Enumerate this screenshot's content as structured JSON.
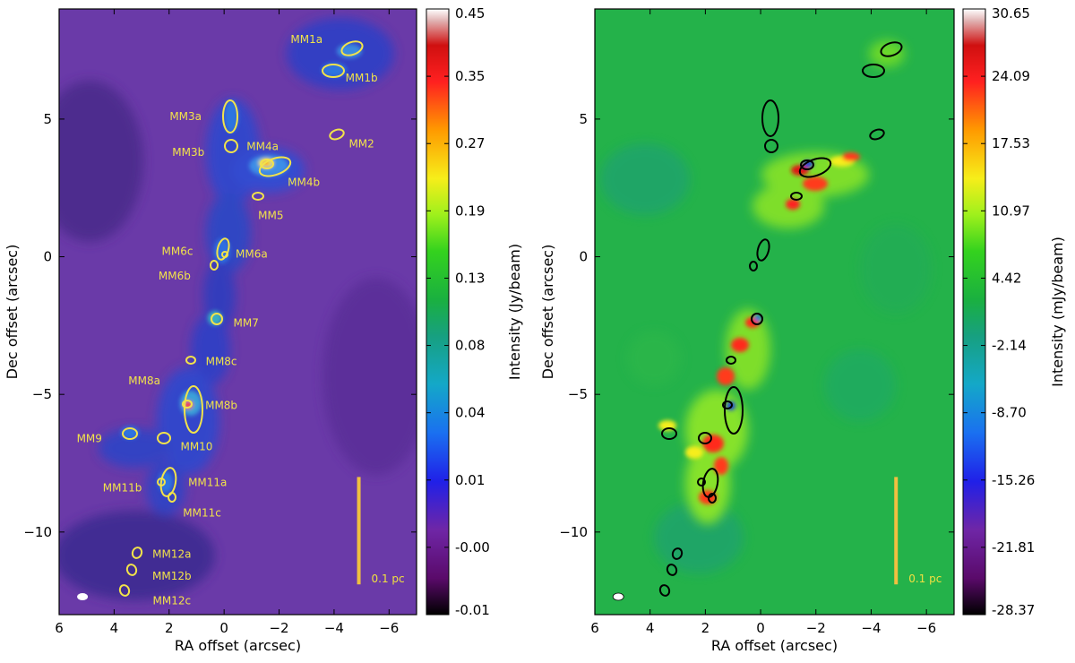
{
  "chart_data": [
    {
      "type": "heatmap",
      "xlabel": "RA offset (arcsec)",
      "ylabel": "Dec offset (arcsec)",
      "xlim": [
        6,
        -7
      ],
      "ylim": [
        -13,
        9
      ],
      "xticks": [
        6,
        4,
        2,
        0,
        -2,
        -4,
        -6
      ],
      "xtick_labels": [
        "6",
        "4",
        "2",
        "0",
        "−2",
        "−4",
        "−6"
      ],
      "yticks": [
        5,
        0,
        -5,
        -10
      ],
      "ytick_labels": [
        "5",
        "0",
        "−5",
        "−10"
      ],
      "colorbar": {
        "label": "Intensity (Jy/beam)",
        "colormap": "spectral",
        "ticks": [
          "0.45",
          "0.35",
          "0.27",
          "0.19",
          "0.13",
          "0.08",
          "0.04",
          "0.01",
          "-0.00",
          "-0.01"
        ]
      },
      "ellipse_color": "#f2e34a",
      "label_color": "#f2e34a",
      "scalebar": {
        "label": "0.1 pc",
        "x": -4.9,
        "y_top": -8.0,
        "y_bottom": -11.9
      },
      "beam": {
        "x": 5.15,
        "y": -12.35
      },
      "cores": [
        {
          "name": "MM1a",
          "x": -4.5,
          "y": 7.5,
          "lx": -3.0,
          "ly": 7.9
        },
        {
          "name": "MM1b",
          "x": -3.9,
          "y": 6.7,
          "lx": -5.0,
          "ly": 6.5
        },
        {
          "name": "MM2",
          "x": -3.9,
          "y": 4.4,
          "lx": -5.0,
          "ly": 4.1
        },
        {
          "name": "MM3a",
          "x": -0.1,
          "y": 5.1,
          "lx": 1.4,
          "ly": 5.1
        },
        {
          "name": "MM3b",
          "x": -0.1,
          "y": 4.0,
          "lx": 1.3,
          "ly": 3.8
        },
        {
          "name": "MM4a",
          "x": -1.45,
          "y": 3.35,
          "lx": -1.4,
          "ly": 4.0
        },
        {
          "name": "MM4b",
          "x": -1.8,
          "y": 3.2,
          "lx": -2.9,
          "ly": 2.7
        },
        {
          "name": "MM5",
          "x": -1.1,
          "y": 2.2,
          "lx": -1.7,
          "ly": 1.5
        },
        {
          "name": "MM6a",
          "x": 0.1,
          "y": 0.3,
          "lx": -1.0,
          "ly": 0.1
        },
        {
          "name": "MM6b",
          "x": 0.4,
          "y": -0.4,
          "lx": 1.8,
          "ly": -0.7
        },
        {
          "name": "MM6c",
          "x": 0.1,
          "y": 0.0,
          "lx": 1.7,
          "ly": 0.2
        },
        {
          "name": "MM7",
          "x": 0.35,
          "y": -2.3,
          "lx": -0.8,
          "ly": -2.4
        },
        {
          "name": "MM8a",
          "x": 1.4,
          "y": -4.5,
          "lx": 2.9,
          "ly": -4.5
        },
        {
          "name": "MM8b",
          "x": 1.2,
          "y": -4.7,
          "lx": 0.1,
          "ly": -5.4
        },
        {
          "name": "MM8c",
          "x": 1.3,
          "y": -3.8,
          "lx": 0.1,
          "ly": -3.8
        },
        {
          "name": "MM9",
          "x": 3.6,
          "y": -6.4,
          "lx": 4.9,
          "ly": -6.6
        },
        {
          "name": "MM10",
          "x": 2.3,
          "y": -6.6,
          "lx": 1.0,
          "ly": -6.9
        },
        {
          "name": "MM11a",
          "x": 2.0,
          "y": -8.2,
          "lx": 0.6,
          "ly": -8.2
        },
        {
          "name": "MM11b",
          "x": 2.35,
          "y": -8.3,
          "lx": 3.7,
          "ly": -8.4
        },
        {
          "name": "MM11c",
          "x": 1.9,
          "y": -8.8,
          "lx": 0.8,
          "ly": -9.3
        },
        {
          "name": "MM12a",
          "x": 3.2,
          "y": -10.8,
          "lx": 1.9,
          "ly": -10.8
        },
        {
          "name": "MM12b",
          "x": 3.35,
          "y": -11.4,
          "lx": 1.9,
          "ly": -11.6
        },
        {
          "name": "MM12c",
          "x": 3.55,
          "y": -12.2,
          "lx": 1.9,
          "ly": -12.5
        }
      ]
    },
    {
      "type": "heatmap",
      "xlabel": "RA offset (arcsec)",
      "ylabel": "Dec  offset (arcsec)",
      "xlim": [
        6,
        -7
      ],
      "ylim": [
        -13,
        9
      ],
      "xticks": [
        6,
        4,
        2,
        0,
        -2,
        -4,
        -6
      ],
      "xtick_labels": [
        "6",
        "4",
        "2",
        "0",
        "−2",
        "−4",
        "−6"
      ],
      "yticks": [
        5,
        0,
        -5,
        -10
      ],
      "ytick_labels": [
        "5",
        "0",
        "−5",
        "−10"
      ],
      "colorbar": {
        "label": "Intensity (mJy/beam)",
        "colormap": "spectral",
        "ticks": [
          "30.65",
          "24.09",
          "17.53",
          "10.97",
          "4.42",
          "-2.14",
          "-8.70",
          "-15.26",
          "-21.81",
          "-28.37"
        ]
      },
      "ellipse_color": "#000000",
      "scalebar": {
        "label": "0.1 pc",
        "x": -4.9,
        "y_top": -8.0,
        "y_bottom": -11.9
      },
      "beam": {
        "x": 5.15,
        "y": -12.35
      }
    }
  ]
}
